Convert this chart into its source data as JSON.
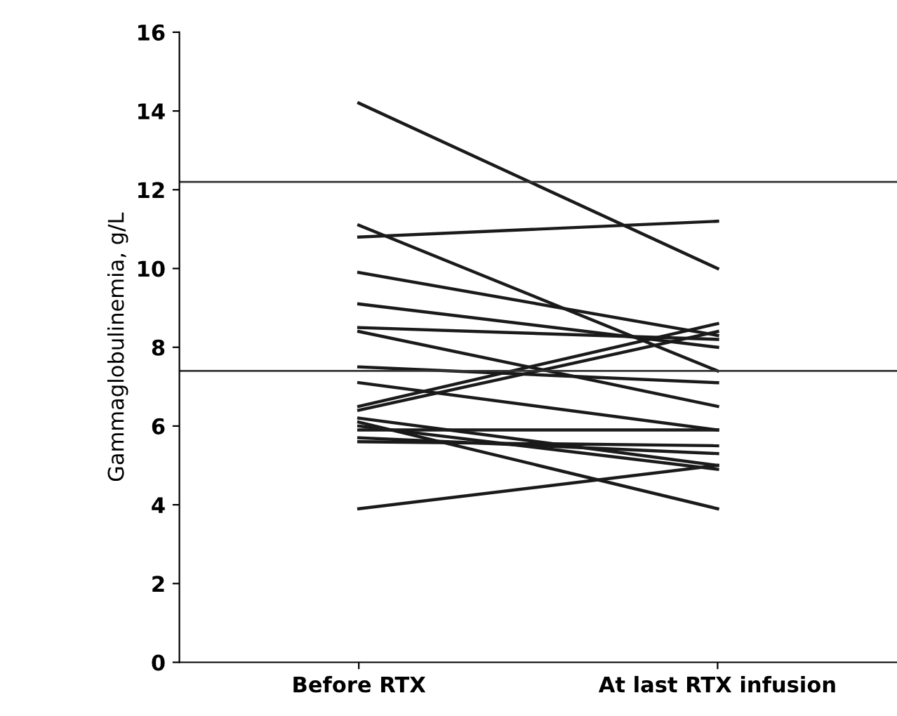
{
  "chart_data": {
    "type": "line",
    "ylabel": "Gammaglobulinemia, g/L",
    "categories": [
      "Before RTX",
      "At last RTX infusion"
    ],
    "series": [
      {
        "color": "#1a1a1a",
        "values": [
          14.2,
          10.0
        ]
      },
      {
        "color": "#1a1a1a",
        "values": [
          10.8,
          11.2
        ]
      },
      {
        "color": "#1a1a1a",
        "values": [
          11.1,
          7.4
        ]
      },
      {
        "color": "#1a1a1a",
        "values": [
          9.9,
          8.3
        ]
      },
      {
        "color": "#1a1a1a",
        "values": [
          9.1,
          8.0
        ]
      },
      {
        "color": "#1a1a1a",
        "values": [
          8.5,
          8.2
        ]
      },
      {
        "color": "#1a1a1a",
        "values": [
          8.4,
          6.5
        ]
      },
      {
        "color": "#1a1a1a",
        "values": [
          7.5,
          7.1
        ]
      },
      {
        "color": "#1a1a1a",
        "values": [
          7.1,
          5.9
        ]
      },
      {
        "color": "#1a1a1a",
        "values": [
          6.5,
          8.6
        ]
      },
      {
        "color": "#1a1a1a",
        "values": [
          6.4,
          8.4
        ]
      },
      {
        "color": "#1a1a1a",
        "values": [
          6.2,
          5.0
        ]
      },
      {
        "color": "#1a1a1a",
        "values": [
          6.1,
          3.9
        ]
      },
      {
        "color": "#1a1a1a",
        "values": [
          5.9,
          5.9
        ]
      },
      {
        "color": "#1a1a1a",
        "values": [
          5.7,
          5.3
        ]
      },
      {
        "color": "#1a1a1a",
        "values": [
          5.6,
          5.5
        ]
      },
      {
        "color": "#1a1a1a",
        "values": [
          6.0,
          4.9
        ]
      },
      {
        "color": "#1a1a1a",
        "values": [
          3.9,
          5.0
        ]
      }
    ],
    "ylim": [
      0,
      16
    ],
    "yticks": [
      0,
      2,
      4,
      6,
      8,
      10,
      12,
      14,
      16
    ],
    "ref_lines": [
      {
        "axis": "y",
        "value": 12.2,
        "color": "#333333"
      },
      {
        "axis": "y",
        "value": 7.4,
        "color": "#333333"
      }
    ],
    "grid": false,
    "legend": false,
    "marker": "none",
    "line_style": "solid"
  }
}
